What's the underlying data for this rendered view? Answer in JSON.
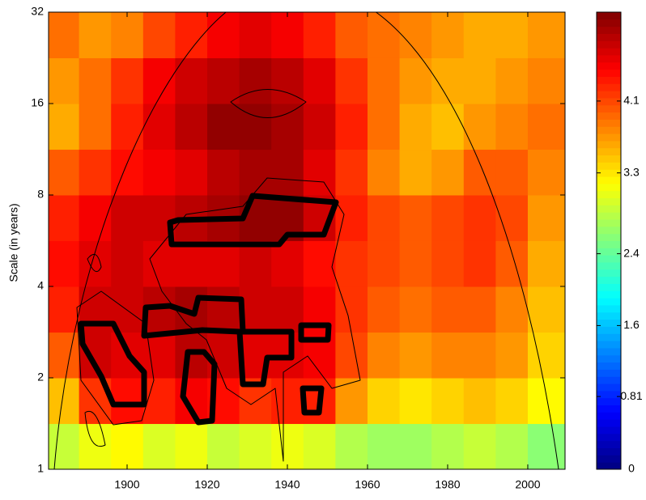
{
  "chart_data": {
    "type": "heatmap",
    "ylabel": "Scale (in years)",
    "x": [
      1884,
      1892,
      1900,
      1908,
      1916,
      1924,
      1932,
      1940,
      1948,
      1956,
      1964,
      1972,
      1980,
      1988,
      1996,
      2004
    ],
    "y": [
      1.19,
      1.68,
      2.38,
      3.36,
      4.76,
      6.73,
      9.51,
      13.45,
      19.03,
      26.91
    ],
    "z": [
      [
        2.9,
        3.1,
        3.2,
        3.0,
        3.1,
        2.9,
        3.0,
        3.1,
        3.0,
        2.8,
        2.7,
        2.7,
        2.8,
        2.9,
        2.8,
        2.6
      ],
      [
        3.5,
        4.2,
        4.4,
        4.3,
        4.5,
        4.4,
        4.2,
        4.3,
        4.3,
        3.7,
        3.4,
        3.3,
        3.4,
        3.5,
        3.4,
        3.2
      ],
      [
        4.0,
        4.7,
        4.6,
        4.6,
        4.8,
        4.7,
        4.6,
        4.6,
        4.5,
        4.1,
        3.8,
        3.7,
        3.8,
        3.8,
        3.7,
        3.4
      ],
      [
        4.3,
        4.7,
        4.7,
        4.8,
        4.9,
        4.8,
        4.7,
        4.7,
        4.5,
        4.2,
        4.0,
        3.9,
        4.0,
        4.0,
        3.8,
        3.5
      ],
      [
        4.4,
        4.6,
        4.7,
        4.6,
        4.6,
        4.6,
        4.7,
        4.6,
        4.4,
        4.2,
        4.1,
        4.0,
        4.1,
        4.2,
        4.0,
        3.6
      ],
      [
        4.3,
        4.5,
        4.7,
        4.7,
        4.8,
        4.9,
        5.0,
        5.0,
        4.7,
        4.3,
        4.1,
        4.0,
        4.1,
        4.2,
        4.1,
        3.7
      ],
      [
        4.0,
        4.2,
        4.4,
        4.5,
        4.6,
        4.8,
        4.9,
        4.9,
        4.6,
        4.2,
        3.8,
        3.6,
        3.7,
        4.0,
        4.0,
        3.8
      ],
      [
        3.6,
        3.9,
        4.3,
        4.6,
        4.8,
        5.0,
        5.0,
        4.9,
        4.7,
        4.3,
        3.9,
        3.6,
        3.5,
        3.7,
        3.8,
        3.9
      ],
      [
        3.7,
        3.9,
        4.2,
        4.5,
        4.7,
        4.8,
        4.9,
        4.8,
        4.6,
        4.2,
        3.9,
        3.7,
        3.6,
        3.6,
        3.7,
        3.8
      ],
      [
        3.9,
        3.7,
        3.8,
        4.1,
        4.3,
        4.5,
        4.6,
        4.5,
        4.3,
        4.0,
        3.9,
        3.8,
        3.7,
        3.6,
        3.6,
        3.7
      ]
    ],
    "xlim": [
      1880.4,
      2009.3
    ],
    "xticks": [
      1900,
      1920,
      1940,
      1960,
      1980,
      2000
    ],
    "ylim": [
      1,
      32
    ],
    "yticks": [
      1,
      2,
      4,
      8,
      16,
      32
    ],
    "yscale": "log",
    "colormap": "jet",
    "clim": [
      0,
      5.09
    ],
    "cticks": [
      0,
      0.81,
      1.6,
      2.4,
      3.3,
      4.1
    ]
  }
}
